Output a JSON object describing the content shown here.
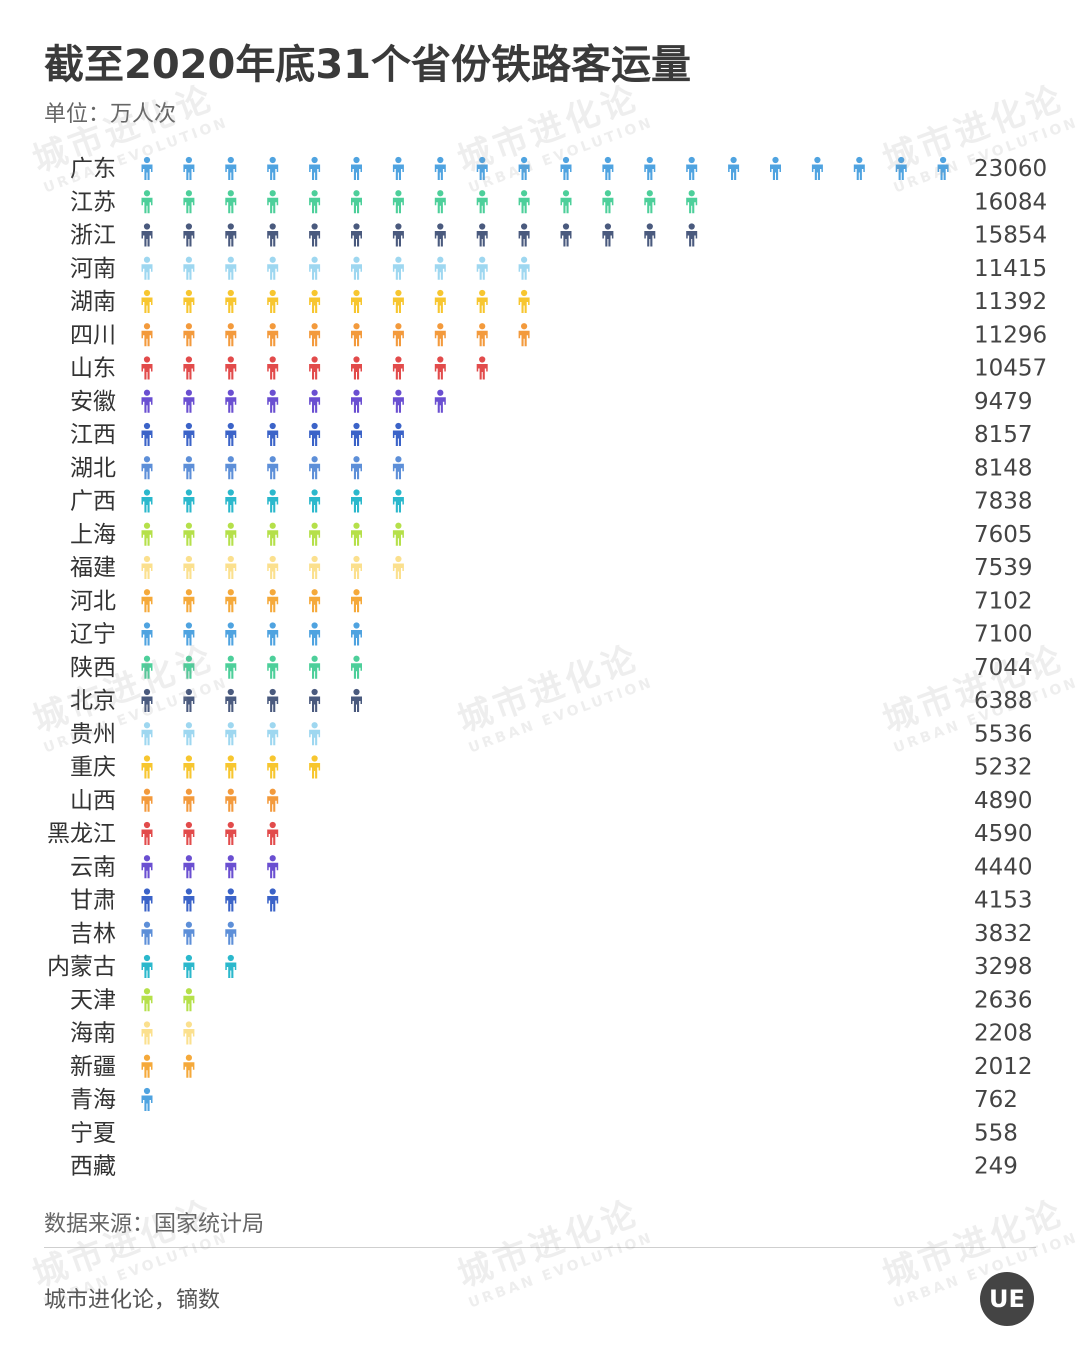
{
  "title": "截至2020年底31个省份铁路客运量",
  "unit": "单位：万人次",
  "source": "数据来源：国家统计局",
  "credit": "城市进化论，镝数",
  "logo_text": "UE",
  "watermark": {
    "cn": "城市进化论",
    "en": "URBAN EVOLUTION"
  },
  "chart_data": {
    "type": "bar",
    "categories": [
      "广东",
      "江苏",
      "浙江",
      "河南",
      "湖南",
      "四川",
      "山东",
      "安徽",
      "江西",
      "湖北",
      "广西",
      "上海",
      "福建",
      "河北",
      "辽宁",
      "陕西",
      "北京",
      "贵州",
      "重庆",
      "山西",
      "黑龙江",
      "云南",
      "甘肃",
      "吉林",
      "内蒙古",
      "天津",
      "海南",
      "新疆",
      "青海",
      "宁夏",
      "西藏"
    ],
    "values": [
      23060,
      16084,
      15854,
      11415,
      11392,
      11296,
      10457,
      9479,
      8157,
      8148,
      7838,
      7605,
      7539,
      7102,
      7100,
      7044,
      6388,
      5536,
      5232,
      4890,
      4590,
      4440,
      4153,
      3832,
      3298,
      2636,
      2208,
      2012,
      762,
      558,
      249
    ],
    "icon_counts": [
      20,
      14,
      14,
      10,
      10,
      10,
      9,
      8,
      7,
      7,
      7,
      7,
      7,
      6,
      6,
      6,
      6,
      5,
      5,
      4,
      4,
      4,
      4,
      3,
      3,
      2,
      2,
      2,
      1,
      0,
      0
    ],
    "icon": "person-icon",
    "colors": [
      "#4fa3e0",
      "#4dcf9a",
      "#4a5a7e",
      "#9ed7f0",
      "#f7c62f",
      "#f39a3c",
      "#e24b4b",
      "#6a4fd1",
      "#3b63c8",
      "#5d8fd8",
      "#2bb8cc",
      "#b5e04a",
      "#fbe08e",
      "#f5a93a"
    ],
    "value_color": "#444444",
    "label_color": "#333333"
  }
}
